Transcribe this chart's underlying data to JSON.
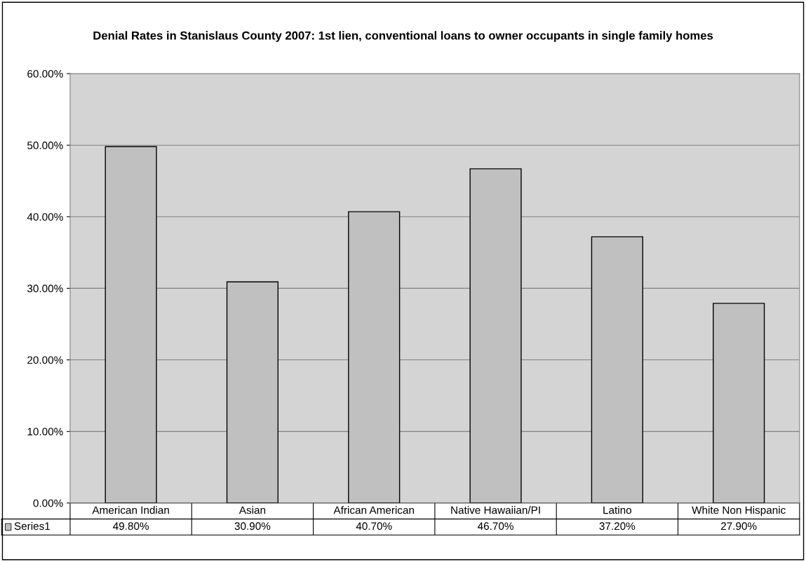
{
  "chart_data": {
    "type": "bar",
    "title": "Denial Rates in Stanislaus County 2007: 1st lien, conventional loans to owner occupants in single family homes",
    "categories": [
      "American Indian",
      "Asian",
      "African American",
      "Native Hawaiian/PI",
      "Latino",
      "White Non Hispanic"
    ],
    "series": [
      {
        "name": "Series1",
        "color": "#c0c0c0",
        "values": [
          49.8,
          30.9,
          40.7,
          46.7,
          37.2,
          27.9
        ],
        "value_labels": [
          "49.80%",
          "30.90%",
          "40.70%",
          "46.70%",
          "37.20%",
          "27.90%"
        ]
      }
    ],
    "ylim": [
      0,
      60
    ],
    "yticks": [
      {
        "value": 0,
        "label": "0.00%"
      },
      {
        "value": 10,
        "label": "10.00%"
      },
      {
        "value": 20,
        "label": "20.00%"
      },
      {
        "value": 30,
        "label": "30.00%"
      },
      {
        "value": 40,
        "label": "40.00%"
      },
      {
        "value": 50,
        "label": "50.00%"
      },
      {
        "value": 60,
        "label": "60.00%"
      }
    ],
    "grid": "y",
    "legend": "bottom"
  }
}
